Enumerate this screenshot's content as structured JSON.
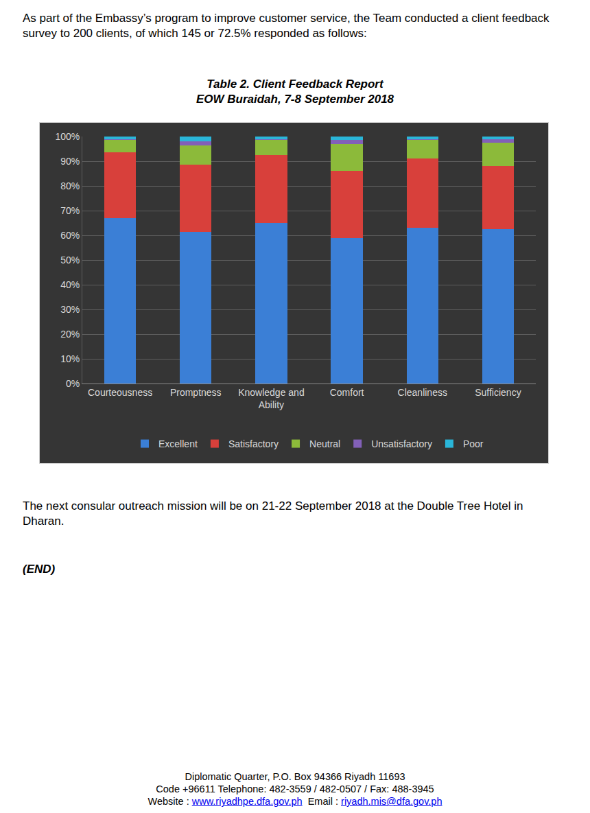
{
  "intro": "As part of the Embassy’s program to improve customer service, the Team conducted a client feedback survey to 200 clients, of which 145 or 72.5% responded as follows:",
  "chart_data": {
    "type": "bar",
    "title": [
      "Table 2. Client Feedback Report",
      "EOW Buraidah, 7-8 September 2018"
    ],
    "stacked": true,
    "grid": true,
    "legend": "bottom",
    "categories": [
      "Courteousness",
      "Promptness",
      "Knowledge and Ability",
      "Comfort",
      "Cleanliness",
      "Sufficiency"
    ],
    "series": [
      {
        "name": "Excellent",
        "color": "#3b7fd6",
        "values": [
          67,
          61.5,
          65,
          59,
          63,
          62.5
        ]
      },
      {
        "name": "Satisfactory",
        "color": "#d8403b",
        "values": [
          26.5,
          27,
          27.5,
          27,
          28,
          25.5
        ]
      },
      {
        "name": "Neutral",
        "color": "#8cba3a",
        "values": [
          5,
          8,
          6,
          11,
          7.5,
          9.5
        ]
      },
      {
        "name": "Unsatisfactory",
        "color": "#8260b8",
        "values": [
          0.5,
          1.5,
          0.5,
          1.5,
          0.5,
          1.5
        ]
      },
      {
        "name": "Poor",
        "color": "#2ab6d9",
        "values": [
          1,
          2,
          1,
          1.5,
          1,
          1
        ]
      }
    ],
    "ylim": [
      0,
      100
    ],
    "yticks": [
      {
        "value": 0,
        "label": "0%"
      },
      {
        "value": 10,
        "label": "10%"
      },
      {
        "value": 20,
        "label": "20%"
      },
      {
        "value": 30,
        "label": "30%"
      },
      {
        "value": 40,
        "label": "40%"
      },
      {
        "value": 50,
        "label": "50%"
      },
      {
        "value": 60,
        "label": "60%"
      },
      {
        "value": 70,
        "label": "70%"
      },
      {
        "value": 80,
        "label": "80%"
      },
      {
        "value": 90,
        "label": "90%"
      },
      {
        "value": 100,
        "label": "100%"
      }
    ]
  },
  "next_mission": "The next consular outreach mission will be on 21-22 September 2018 at the Double Tree Hotel in Dharan.",
  "end": "(END)",
  "footer": {
    "lines": [
      "Diplomatic Quarter, P.O. Box 94366 Riyadh 11693",
      "Code +96611 Telephone: 482-3559 / 482-0507 / Fax: 488-3945"
    ],
    "website_label": "Website :",
    "website": "www.riyadhpe.dfa.gov.ph",
    "email_label": "Email :",
    "email": "riyadh.mis@dfa.gov.ph"
  }
}
